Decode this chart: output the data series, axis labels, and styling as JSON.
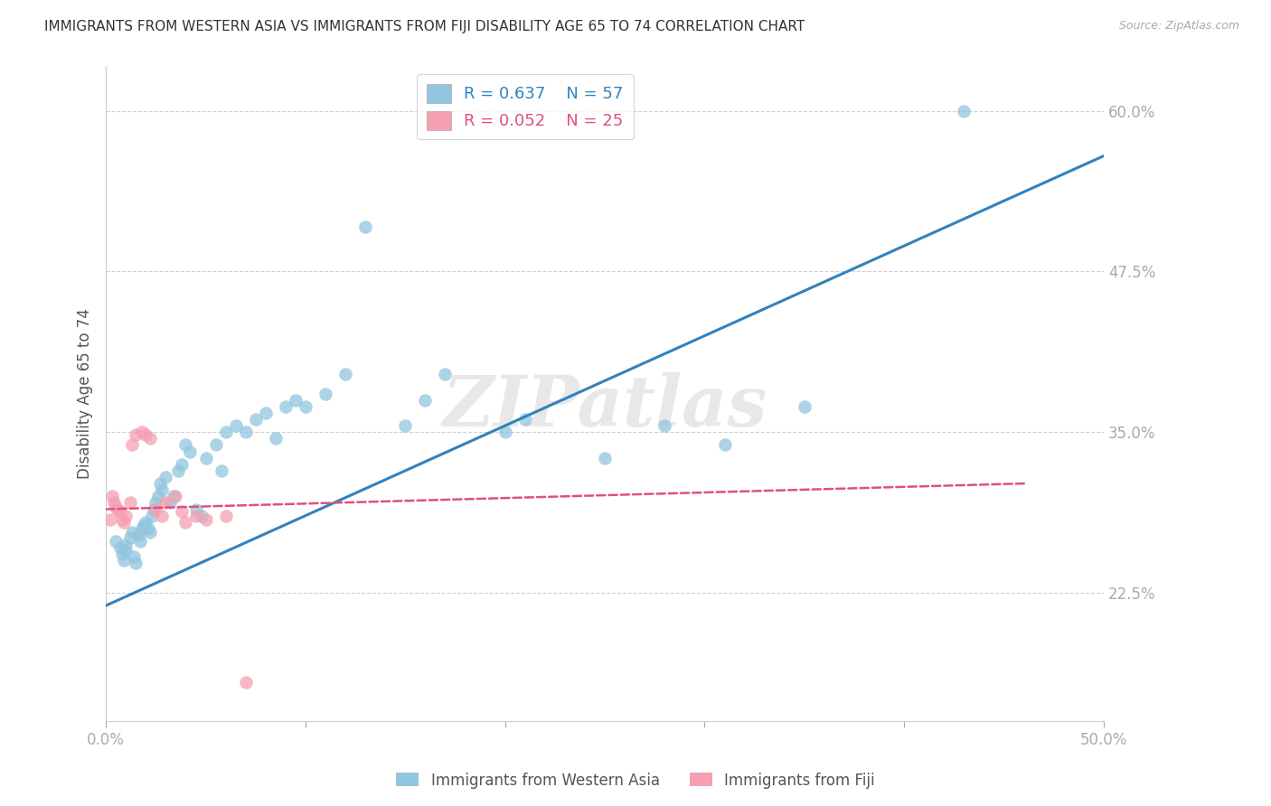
{
  "title": "IMMIGRANTS FROM WESTERN ASIA VS IMMIGRANTS FROM FIJI DISABILITY AGE 65 TO 74 CORRELATION CHART",
  "source": "Source: ZipAtlas.com",
  "ylabel_label": "Disability Age 65 to 74",
  "xlim": [
    0.0,
    0.5
  ],
  "ylim": [
    0.125,
    0.635
  ],
  "x_ticks": [
    0.0,
    0.1,
    0.2,
    0.3,
    0.4,
    0.5
  ],
  "x_tick_labels": [
    "0.0%",
    "",
    "",
    "",
    "",
    "50.0%"
  ],
  "y_ticks": [
    0.225,
    0.35,
    0.475,
    0.6
  ],
  "y_tick_labels": [
    "22.5%",
    "35.0%",
    "47.5%",
    "60.0%"
  ],
  "blue_color": "#92c5de",
  "pink_color": "#f4a0b0",
  "blue_line_color": "#3182bd",
  "pink_line_color": "#e05080",
  "legend_blue_R": "R = 0.637",
  "legend_blue_N": "N = 57",
  "legend_pink_R": "R = 0.052",
  "legend_pink_N": "N = 25",
  "legend_blue_label": "Immigrants from Western Asia",
  "legend_pink_label": "Immigrants from Fiji",
  "watermark": "ZIPatlas",
  "blue_scatter_x": [
    0.005,
    0.007,
    0.008,
    0.009,
    0.01,
    0.01,
    0.012,
    0.013,
    0.014,
    0.015,
    0.016,
    0.017,
    0.018,
    0.019,
    0.02,
    0.021,
    0.022,
    0.023,
    0.024,
    0.025,
    0.026,
    0.027,
    0.028,
    0.03,
    0.032,
    0.034,
    0.036,
    0.038,
    0.04,
    0.042,
    0.045,
    0.048,
    0.05,
    0.055,
    0.058,
    0.06,
    0.065,
    0.07,
    0.075,
    0.08,
    0.085,
    0.09,
    0.095,
    0.1,
    0.11,
    0.12,
    0.13,
    0.15,
    0.16,
    0.17,
    0.2,
    0.21,
    0.25,
    0.28,
    0.31,
    0.35,
    0.43
  ],
  "blue_scatter_y": [
    0.265,
    0.26,
    0.255,
    0.25,
    0.258,
    0.262,
    0.268,
    0.272,
    0.253,
    0.248,
    0.27,
    0.265,
    0.275,
    0.278,
    0.28,
    0.275,
    0.272,
    0.285,
    0.29,
    0.295,
    0.3,
    0.31,
    0.305,
    0.315,
    0.295,
    0.3,
    0.32,
    0.325,
    0.34,
    0.335,
    0.29,
    0.285,
    0.33,
    0.34,
    0.32,
    0.35,
    0.355,
    0.35,
    0.36,
    0.365,
    0.345,
    0.37,
    0.375,
    0.37,
    0.38,
    0.395,
    0.51,
    0.355,
    0.375,
    0.395,
    0.35,
    0.36,
    0.33,
    0.355,
    0.34,
    0.37,
    0.6
  ],
  "pink_scatter_x": [
    0.002,
    0.003,
    0.004,
    0.005,
    0.006,
    0.007,
    0.008,
    0.009,
    0.01,
    0.012,
    0.013,
    0.015,
    0.018,
    0.02,
    0.022,
    0.025,
    0.028,
    0.03,
    0.035,
    0.038,
    0.04,
    0.045,
    0.05,
    0.06,
    0.07
  ],
  "pink_scatter_y": [
    0.282,
    0.3,
    0.295,
    0.292,
    0.29,
    0.288,
    0.282,
    0.28,
    0.285,
    0.295,
    0.34,
    0.348,
    0.35,
    0.348,
    0.345,
    0.29,
    0.285,
    0.295,
    0.3,
    0.288,
    0.28,
    0.285,
    0.282,
    0.285,
    0.155
  ],
  "blue_line_x": [
    0.0,
    0.5
  ],
  "blue_line_y": [
    0.215,
    0.565
  ],
  "pink_line_x": [
    0.0,
    0.46
  ],
  "pink_line_y": [
    0.29,
    0.31
  ],
  "background_color": "#ffffff",
  "grid_color": "#d0d0d0",
  "title_color": "#333333",
  "tick_label_color": "#3377cc",
  "ylabel_color": "#555555"
}
